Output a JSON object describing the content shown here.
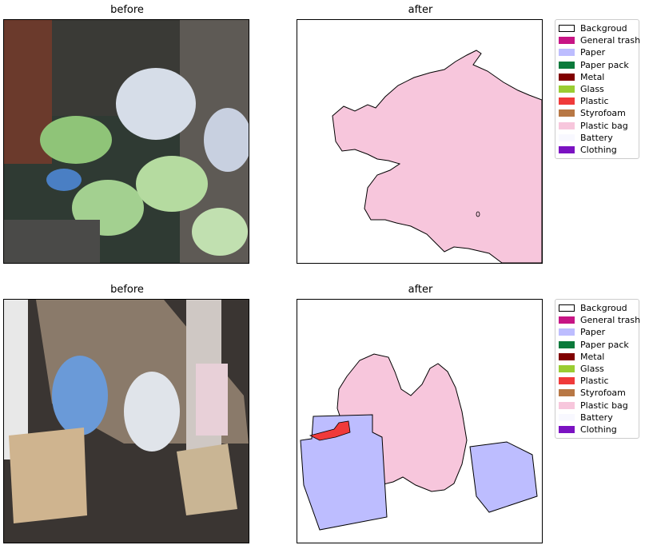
{
  "rows": [
    {
      "before_title": "before",
      "after_title": "after"
    },
    {
      "before_title": "before",
      "after_title": "after"
    }
  ],
  "legend": {
    "items": [
      {
        "label": "Backgroud",
        "color": "#ffffff",
        "outline": true
      },
      {
        "label": "General trash",
        "color": "#c71585"
      },
      {
        "label": "Paper",
        "color": "#bdbdff"
      },
      {
        "label": "Paper pack",
        "color": "#0b7a3b"
      },
      {
        "label": "Metal",
        "color": "#800000"
      },
      {
        "label": "Glass",
        "color": "#9acd32"
      },
      {
        "label": "Plastic",
        "color": "#f03a3a"
      },
      {
        "label": "Styrofoam",
        "color": "#b87845"
      },
      {
        "label": "Plastic bag",
        "color": "#f7c6dc"
      },
      {
        "label": "Battery",
        "color": "#f8f8ff"
      },
      {
        "label": "Clothing",
        "color": "#7b12c2"
      }
    ]
  }
}
